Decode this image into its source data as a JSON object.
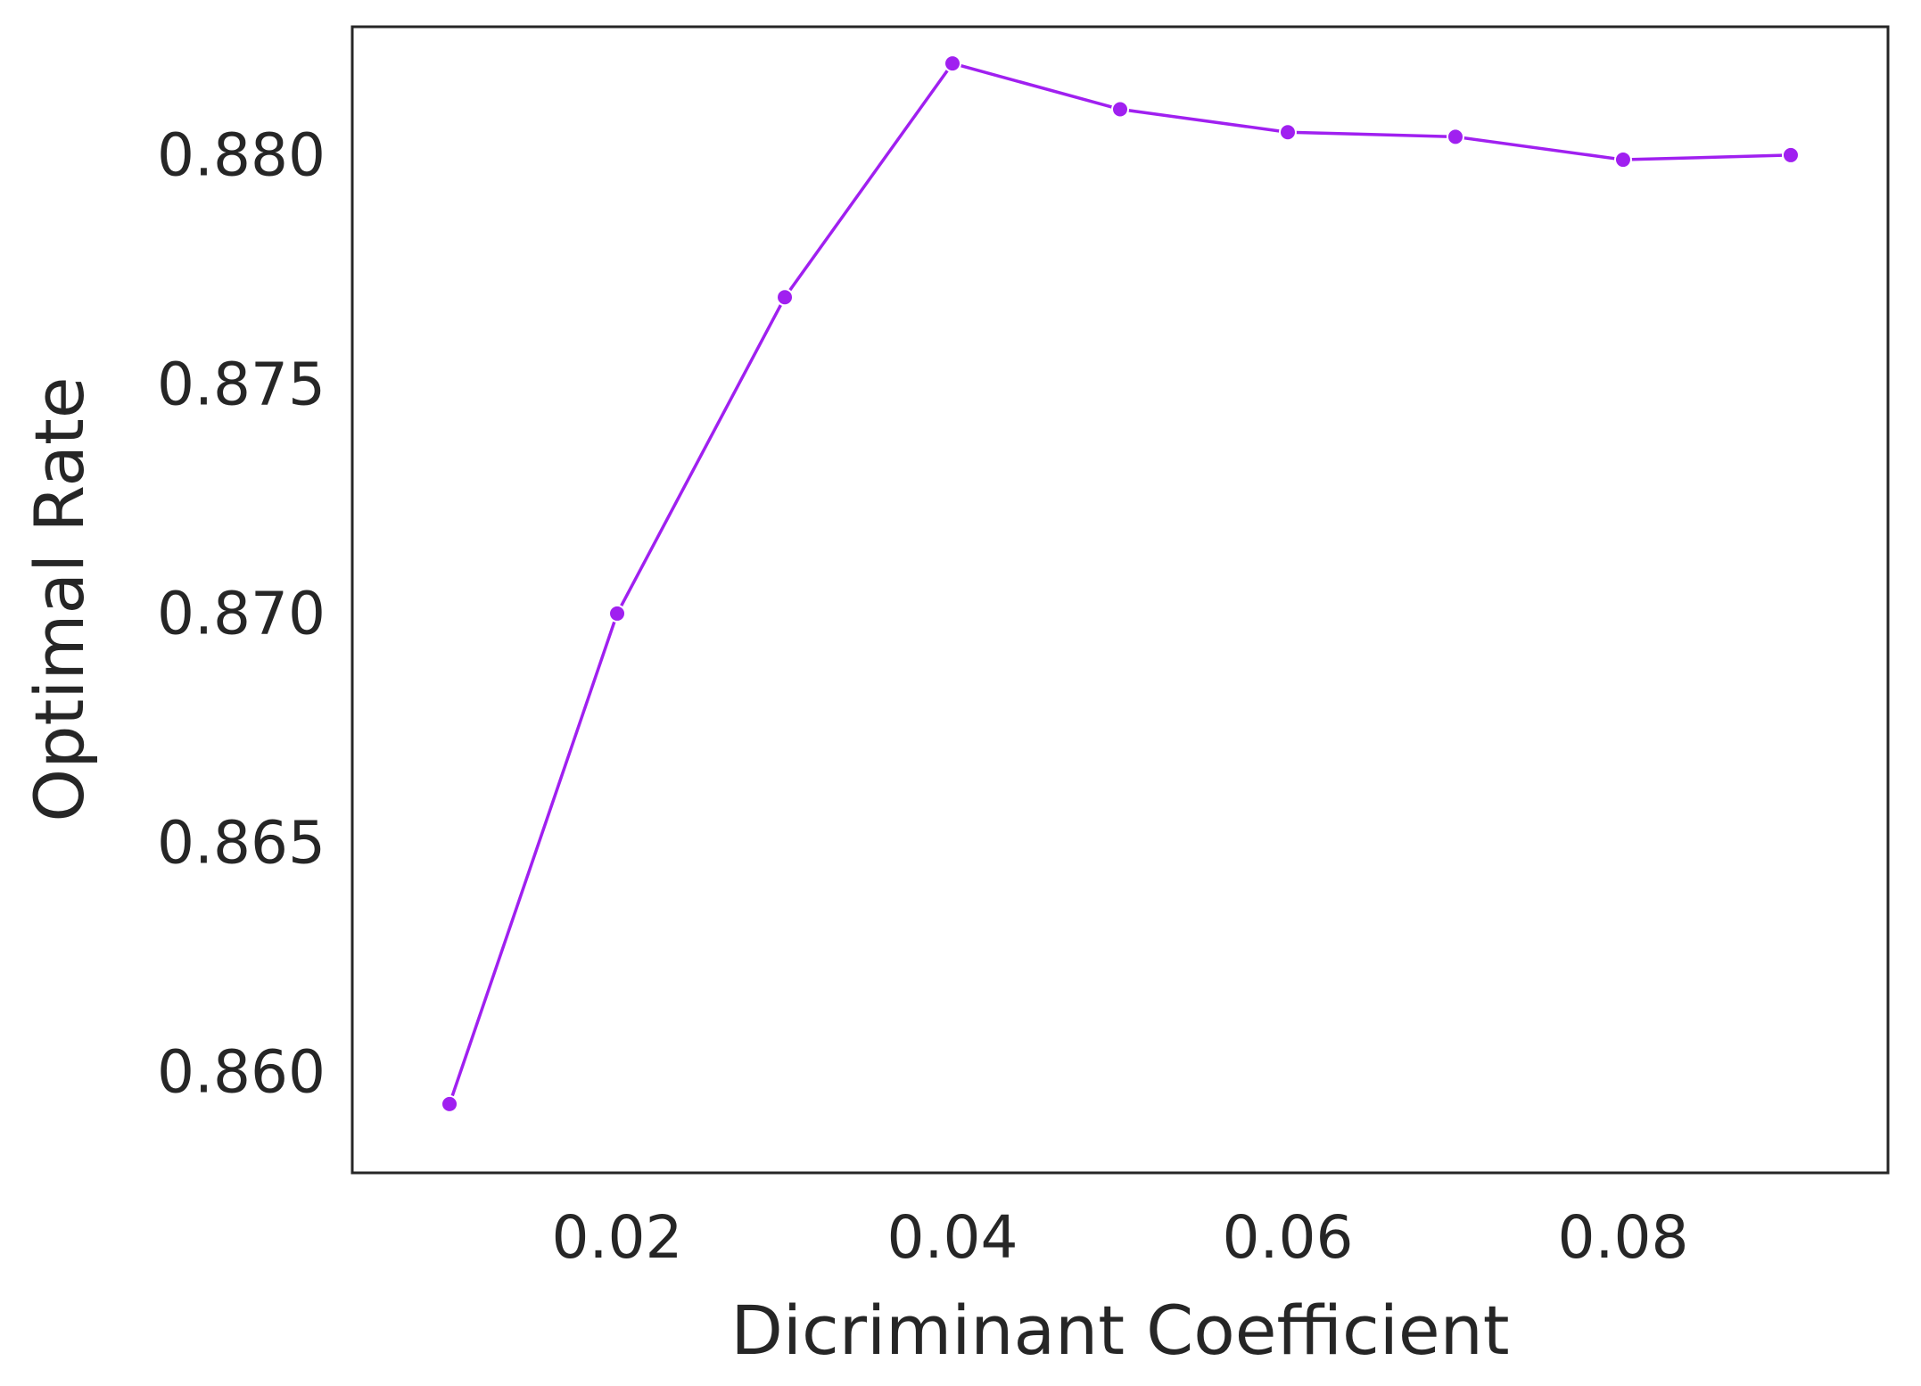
{
  "chart_data": {
    "type": "line",
    "title": "",
    "xlabel": "Dicriminant Coefficient",
    "ylabel": "Optimal Rate",
    "xlim": [
      0.0042,
      0.0958
    ],
    "ylim": [
      0.8578,
      0.8828
    ],
    "xticks": [
      0.02,
      0.04,
      0.06,
      0.08
    ],
    "xtick_labels": [
      "0.02",
      "0.04",
      "0.06",
      "0.08"
    ],
    "yticks": [
      0.86,
      0.865,
      0.87,
      0.875,
      0.88
    ],
    "ytick_labels": [
      "0.860",
      "0.865",
      "0.870",
      "0.875",
      "0.880"
    ],
    "grid": false,
    "series": [
      {
        "color": "#a020f0",
        "marker": "circle",
        "x": [
          0.01,
          0.02,
          0.03,
          0.04,
          0.05,
          0.06,
          0.07,
          0.08,
          0.09
        ],
        "y": [
          0.8593,
          0.87,
          0.8769,
          0.882,
          0.881,
          0.8805,
          0.8804,
          0.8799,
          0.88
        ]
      }
    ]
  }
}
